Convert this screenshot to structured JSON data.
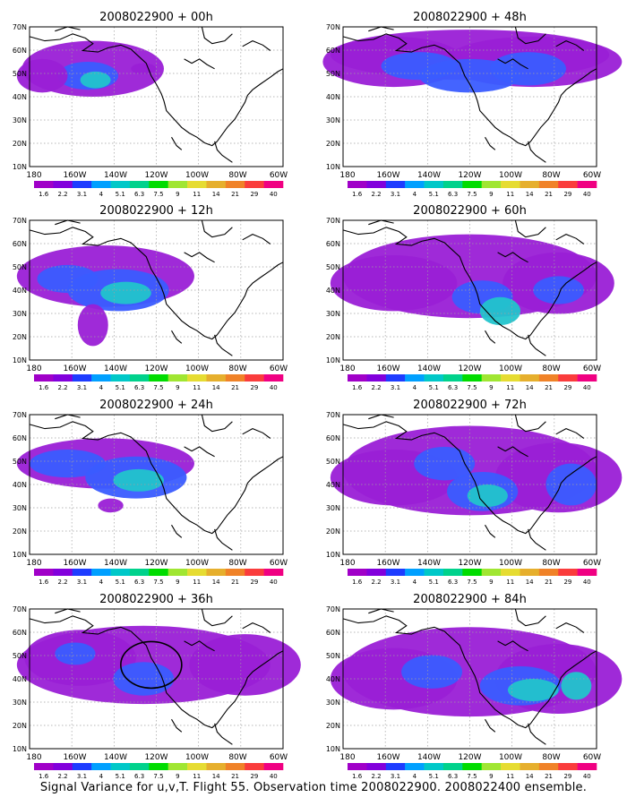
{
  "panels": [
    {
      "title": "2008022900 + 00h"
    },
    {
      "title": "2008022900 + 48h"
    },
    {
      "title": "2008022900 + 12h"
    },
    {
      "title": "2008022900 + 60h"
    },
    {
      "title": "2008022900 + 24h"
    },
    {
      "title": "2008022900 + 72h"
    },
    {
      "title": "2008022900 + 36h"
    },
    {
      "title": "2008022900 + 84h"
    }
  ],
  "lat_labels": [
    "70N",
    "60N",
    "50N",
    "40N",
    "30N",
    "20N",
    "10N"
  ],
  "lon_labels": [
    "180",
    "160W",
    "140W",
    "120W",
    "100W",
    "80W",
    "60W"
  ],
  "colorbar": {
    "labels": [
      "1.6",
      "2.2",
      "3.1",
      "4",
      "5.1",
      "6.3",
      "7.5",
      "9",
      "11",
      "14",
      "21",
      "29",
      "40"
    ],
    "colors": [
      "#a000c8",
      "#8200dc",
      "#1e3cff",
      "#00a0ff",
      "#00c8c8",
      "#00d28c",
      "#00dc00",
      "#a0e632",
      "#e6dc32",
      "#e6af2d",
      "#f08228",
      "#fa3c3c",
      "#f00082"
    ]
  },
  "colors": {
    "land_outline": "#000000",
    "grid": "#a0a0a0"
  },
  "footer": "Signal Variance for u,v,T. Flight 55. Observation time 2008022900. 2008022400 ensemble."
}
